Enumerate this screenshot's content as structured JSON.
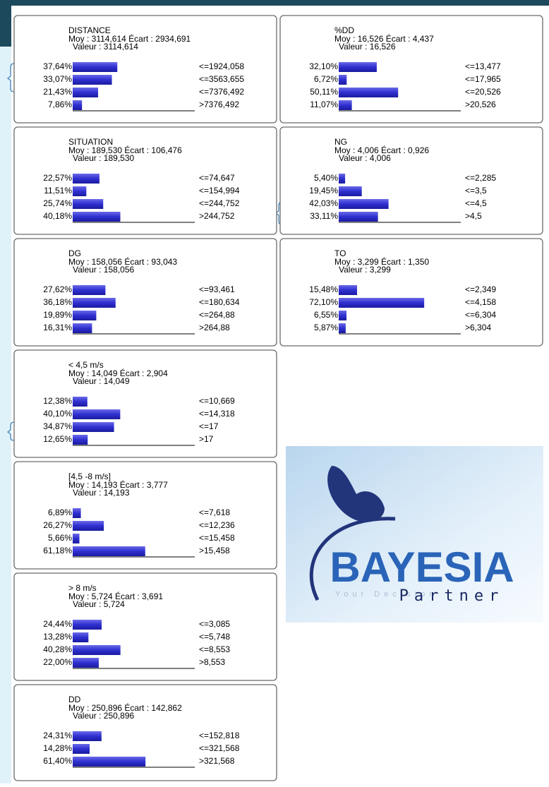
{
  "monitors": [
    {
      "title": "DISTANCE",
      "stats": "Moy : 3114,614 Écart : 2934,691",
      "value": "Valeur : 3114,614",
      "rows": [
        {
          "percent": 37.64,
          "percent_label": "37,64%",
          "state": "<=1924,058"
        },
        {
          "percent": 33.07,
          "percent_label": "33,07%",
          "state": "<=3563,655"
        },
        {
          "percent": 21.43,
          "percent_label": "21,43%",
          "state": "<=7376,492"
        },
        {
          "percent": 7.86,
          "percent_label": "7,86%",
          "state": ">7376,492"
        }
      ]
    },
    {
      "title": "%DD",
      "stats": "Moy : 16,526 Écart : 4,437",
      "value": "Valeur : 16,526",
      "rows": [
        {
          "percent": 32.1,
          "percent_label": "32,10%",
          "state": "<=13,477"
        },
        {
          "percent": 6.72,
          "percent_label": "6,72%",
          "state": "<=17,965"
        },
        {
          "percent": 50.11,
          "percent_label": "50,11%",
          "state": "<=20,526"
        },
        {
          "percent": 11.07,
          "percent_label": "11,07%",
          "state": ">20,526"
        }
      ]
    },
    {
      "title": "SITUATION",
      "stats": "Moy : 189,530 Écart : 106,476",
      "value": "Valeur : 189,530",
      "rows": [
        {
          "percent": 22.57,
          "percent_label": "22,57%",
          "state": "<=74,647"
        },
        {
          "percent": 11.51,
          "percent_label": "11,51%",
          "state": "<=154,994"
        },
        {
          "percent": 25.74,
          "percent_label": "25,74%",
          "state": "<=244,752"
        },
        {
          "percent": 40.18,
          "percent_label": "40,18%",
          "state": ">244,752"
        }
      ]
    },
    {
      "title": "NG",
      "stats": "Moy : 4,006 Écart : 0,926",
      "value": "Valeur : 4,006",
      "rows": [
        {
          "percent": 5.4,
          "percent_label": "5,40%",
          "state": "<=2,285"
        },
        {
          "percent": 19.45,
          "percent_label": "19,45%",
          "state": "<=3,5"
        },
        {
          "percent": 42.03,
          "percent_label": "42,03%",
          "state": "<=4,5"
        },
        {
          "percent": 33.11,
          "percent_label": "33,11%",
          "state": ">4,5"
        }
      ]
    },
    {
      "title": "DG",
      "stats": "Moy : 158,056 Écart : 93,043",
      "value": "Valeur : 158,056",
      "rows": [
        {
          "percent": 27.62,
          "percent_label": "27,62%",
          "state": "<=93,461"
        },
        {
          "percent": 36.18,
          "percent_label": "36,18%",
          "state": "<=180,634"
        },
        {
          "percent": 19.89,
          "percent_label": "19,89%",
          "state": "<=264,88"
        },
        {
          "percent": 16.31,
          "percent_label": "16,31%",
          "state": ">264,88"
        }
      ]
    },
    {
      "title": "TO",
      "stats": "Moy : 3,299 Écart : 1,350",
      "value": "Valeur : 3,299",
      "rows": [
        {
          "percent": 15.48,
          "percent_label": "15,48%",
          "state": "<=2,349"
        },
        {
          "percent": 72.1,
          "percent_label": "72,10%",
          "state": "<=4,158"
        },
        {
          "percent": 6.55,
          "percent_label": "6,55%",
          "state": "<=6,304"
        },
        {
          "percent": 5.87,
          "percent_label": "5,87%",
          "state": ">6,304"
        }
      ]
    },
    {
      "title": "< 4,5 m/s",
      "stats": "Moy : 14,049 Écart : 2,904",
      "value": "Valeur : 14,049",
      "rows": [
        {
          "percent": 12.38,
          "percent_label": "12,38%",
          "state": "<=10,669"
        },
        {
          "percent": 40.1,
          "percent_label": "40,10%",
          "state": "<=14,318"
        },
        {
          "percent": 34.87,
          "percent_label": "34,87%",
          "state": "<=17"
        },
        {
          "percent": 12.65,
          "percent_label": "12,65%",
          "state": ">17"
        }
      ]
    },
    {
      "title": "[4,5 -8 m/s]",
      "stats": "Moy : 14,193 Écart : 3,777",
      "value": "Valeur : 14,193",
      "rows": [
        {
          "percent": 6.89,
          "percent_label": "6,89%",
          "state": "<=7,618"
        },
        {
          "percent": 26.27,
          "percent_label": "26,27%",
          "state": "<=12,236"
        },
        {
          "percent": 5.66,
          "percent_label": "5,66%",
          "state": "<=15,458"
        },
        {
          "percent": 61.18,
          "percent_label": "61,18%",
          "state": ">15,458"
        }
      ]
    },
    {
      "title": "> 8 m/s",
      "stats": "Moy : 5,724 Écart : 3,691",
      "value": "Valeur : 5,724",
      "rows": [
        {
          "percent": 24.44,
          "percent_label": "24,44%",
          "state": "<=3,085"
        },
        {
          "percent": 13.28,
          "percent_label": "13,28%",
          "state": "<=5,748"
        },
        {
          "percent": 40.28,
          "percent_label": "40,28%",
          "state": "<=8,553"
        },
        {
          "percent": 22.0,
          "percent_label": "22,00%",
          "state": ">8,553"
        }
      ]
    },
    {
      "title": "DD",
      "stats": "Moy : 250,896 Écart : 142,862",
      "value": "Valeur : 250,896",
      "rows": [
        {
          "percent": 24.31,
          "percent_label": "24,31%",
          "state": "<=152,818"
        },
        {
          "percent": 14.28,
          "percent_label": "14,28%",
          "state": "<=321,568"
        },
        {
          "percent": 61.4,
          "percent_label": "61,40%",
          "state": ">321,568"
        }
      ]
    }
  ],
  "logo": {
    "brand": "BAYESIA",
    "tagline": "Your Decision",
    "partner": "Partner"
  }
}
